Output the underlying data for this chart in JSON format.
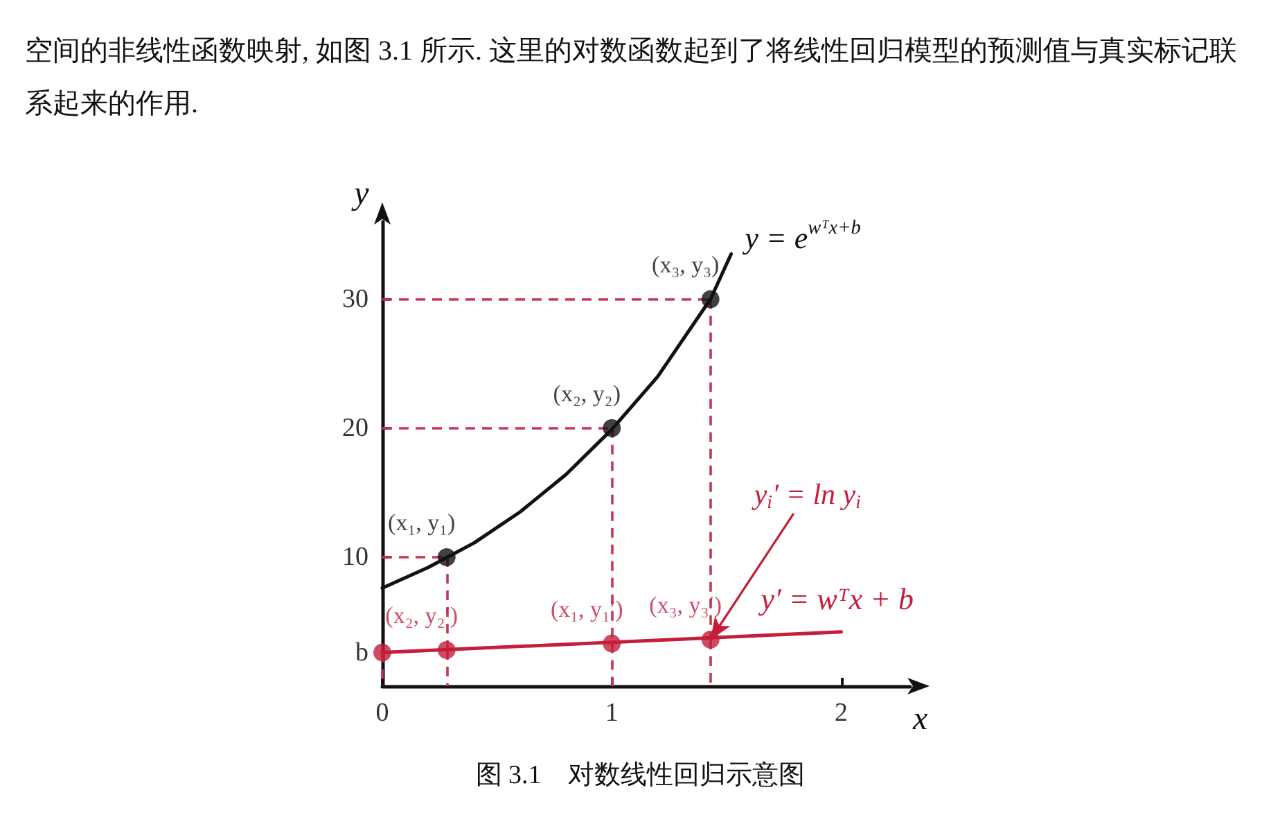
{
  "chart_data": {
    "type": "line",
    "title": "图 3.1　对数线性回归示意图",
    "xlabel": "x",
    "ylabel": "y",
    "annotations": [
      "空间的非线性函数映射, 如图 3.1 所示. 这里的对数函数起到了将线性回归模型的预测值与真实标记联系起来的作用.",
      {
        "text": "y$_{i}$′ = ln y$_{i}$",
        "x": 1.43,
        "y": 3.6
      }
    ],
    "series": [
      {
        "name": "y = e$^{wᵀx+b}$",
        "color": "#111111",
        "marker": "none",
        "x": [
          0,
          0.2,
          0.4,
          0.6,
          0.8,
          1.0,
          1.2,
          1.43,
          1.52
        ],
        "values": [
          7.6,
          9.2,
          11.1,
          13.5,
          16.4,
          19.9,
          24.0,
          30.0,
          33.5
        ]
      },
      {
        "type": "scatter",
        "color": "#111111",
        "marker": "circle",
        "x": [
          0.28,
          1.0,
          1.43
        ],
        "values": [
          10,
          20,
          30
        ],
        "value_labels": [
          "(x₁, y₁)",
          "(x₂, y₂)",
          "(x₃, y₃)"
        ]
      },
      {
        "name": "y′ = wᵀx + b",
        "color": "#c41e3a",
        "marker": "none",
        "x": [
          0,
          2
        ],
        "values": [
          2.6,
          4.2
        ]
      },
      {
        "type": "scatter",
        "color": "#c41e3a",
        "marker": "circle",
        "x": [
          0,
          0.28,
          1.0,
          1.43
        ],
        "values": [
          2.6,
          2.8,
          3.3,
          3.6
        ],
        "value_labels": [
          null,
          "(x₂, y₂′)",
          "(x₁, y₁′)",
          "(x₃, y₃′)"
        ]
      }
    ],
    "xlim": [
      0,
      2.3
    ],
    "ylim": [
      0,
      36
    ],
    "xticks": [
      0,
      1,
      2
    ],
    "yticks": [
      {
        "value": 2.6,
        "label": "b"
      },
      10,
      20,
      30
    ],
    "grid": false,
    "legend": false
  }
}
